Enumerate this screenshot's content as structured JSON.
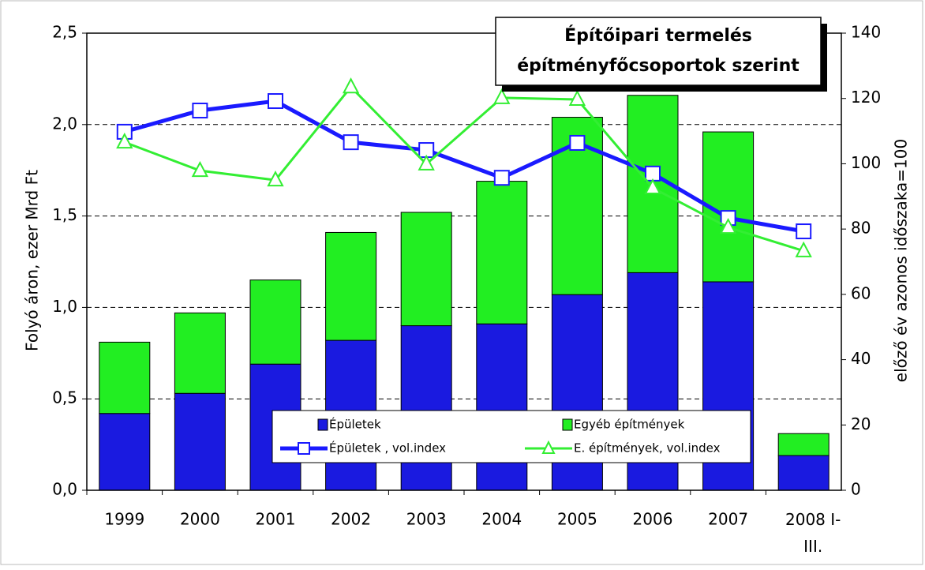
{
  "chart_data": {
    "type": "bar",
    "stacked": true,
    "title": "Építőipari termelés építményfőcsoportok szerint",
    "ylabel": "Folyó áron, ezer Mrd Ft",
    "y2label": "előző év azonos időszaka=100",
    "categories": [
      "1999",
      "2000",
      "2001",
      "2002",
      "2003",
      "2004",
      "2005",
      "2006",
      "2007",
      "2008 I-III."
    ],
    "series": [
      {
        "name": "Épületek",
        "type": "bar",
        "color": "#1a1ae0",
        "values": [
          0.42,
          0.53,
          0.69,
          0.82,
          0.9,
          0.91,
          1.07,
          1.19,
          1.14,
          0.19
        ]
      },
      {
        "name": "Egyéb építmények",
        "type": "bar",
        "color": "#22ee22",
        "values": [
          0.39,
          0.44,
          0.46,
          0.59,
          0.62,
          0.78,
          0.97,
          0.97,
          0.82,
          0.12
        ]
      },
      {
        "name": "Épületek , vol.index",
        "type": "line",
        "axis": "y2",
        "color": "#1a1aff",
        "marker": "square",
        "values": [
          109.8,
          116.3,
          119.2,
          106.6,
          104.2,
          95.7,
          106.4,
          97,
          83.4,
          79.3
        ]
      },
      {
        "name": "E. építmények, vol.index",
        "type": "line",
        "axis": "y2",
        "color": "#33ee33",
        "marker": "triangle",
        "values": [
          106.6,
          97.9,
          95,
          123.5,
          99.9,
          120.2,
          119.7,
          92.6,
          80.5,
          73.3
        ]
      }
    ],
    "ylim": [
      0,
      2.5
    ],
    "yticks": [
      {
        "value": 0,
        "label": "0,0"
      },
      {
        "value": 0.5,
        "label": "0,5"
      },
      {
        "value": 1,
        "label": "1,0"
      },
      {
        "value": 1.5,
        "label": "1,5"
      },
      {
        "value": 2,
        "label": "2,0"
      },
      {
        "value": 2.5,
        "label": "2,5"
      }
    ],
    "y2lim": [
      0,
      140
    ],
    "y2ticks": [
      0,
      20,
      40,
      60,
      80,
      100,
      120,
      140
    ],
    "grid": true
  }
}
